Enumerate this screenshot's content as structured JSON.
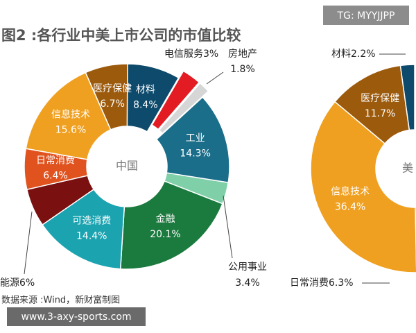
{
  "figure": {
    "title": "图2 :各行业中美上市公司的市值比较",
    "source": "数据来源 :Wind，新财富制图"
  },
  "watermarks": {
    "top_right": "TG: MYYJJPP",
    "bottom_left": "www.3-axy-sports.com"
  },
  "chart_data": [
    {
      "type": "pie",
      "donut": true,
      "clockwise": true,
      "center_label": "中国",
      "categories": [
        "材料",
        "电信服务",
        "房地产",
        "工业",
        "公用事业",
        "金融",
        "可选消费",
        "能源",
        "日常消费",
        "信息技术",
        "医疗保健"
      ],
      "values": [
        8.4,
        3,
        1.8,
        14.3,
        3.4,
        20.1,
        14.4,
        6,
        6.4,
        15.6,
        6.7
      ],
      "value_labels": [
        "8.4%",
        "3%",
        "1.8%",
        "14.3%",
        "3.4%",
        "20.1%",
        "14.4%",
        "6%",
        "6.4%",
        "15.6%",
        "6.7%"
      ],
      "colors": [
        "#0d4a6b",
        "#e31b23",
        "#d6d6d6",
        "#1a6e8a",
        "#7fcfa8",
        "#1b7a3e",
        "#1ba3b0",
        "#7a1010",
        "#e0531f",
        "#f0a020",
        "#9c5a0c"
      ],
      "explode": [
        false,
        true,
        true,
        false,
        false,
        false,
        false,
        false,
        false,
        false,
        false
      ]
    },
    {
      "type": "pie",
      "donut": true,
      "clockwise": false,
      "center_label": "美",
      "categories": [
        "材料",
        "医疗保健",
        "信息技术",
        "日常消费"
      ],
      "values": [
        2.2,
        11.7,
        36.4,
        6.3
      ],
      "value_labels": [
        "2.2%",
        "11.7%",
        "36.4%",
        "6.3%"
      ],
      "colors": [
        "#0d4a6b",
        "#9c5a0c",
        "#f0a020",
        "#e0531f"
      ],
      "explode": [
        false,
        false,
        false,
        false
      ]
    }
  ]
}
